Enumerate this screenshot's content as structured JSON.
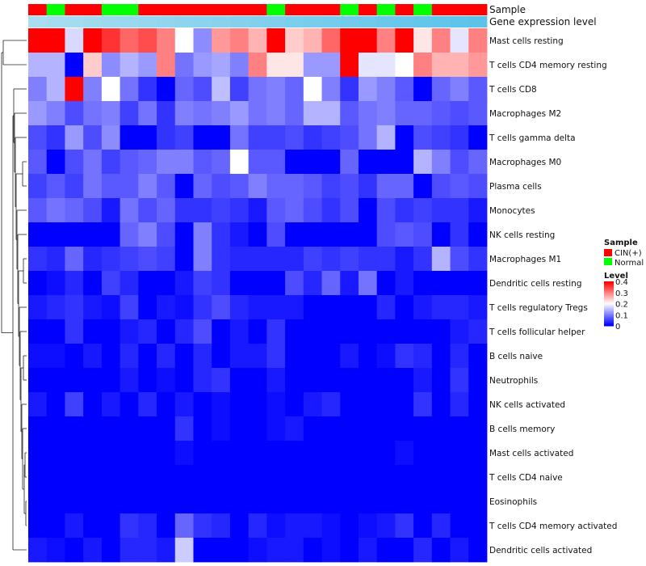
{
  "chart_data": {
    "type": "heatmap",
    "annotation_tracks": [
      "Sample",
      "Gene expression level"
    ],
    "sample_groups": [
      "CIN(+)",
      "Normal",
      "CIN(+)",
      "CIN(+)",
      "Normal",
      "Normal",
      "CIN(+)",
      "CIN(+)",
      "CIN(+)",
      "CIN(+)",
      "CIN(+)",
      "CIN(+)",
      "CIN(+)",
      "Normal",
      "CIN(+)",
      "CIN(+)",
      "CIN(+)",
      "Normal",
      "CIN(+)",
      "Normal",
      "CIN(+)",
      "Normal",
      "CIN(+)",
      "CIN(+)",
      "CIN(+)"
    ],
    "rows": [
      "Mast cells resting",
      "T cells CD4 memory resting",
      "T cells CD8",
      "Macrophages M2",
      "T cells gamma delta",
      "Macrophages M0",
      "Plasma cells",
      "Monocytes",
      "NK cells resting",
      "Macrophages M1",
      "Dendritic cells resting",
      "T cells regulatory  Tregs",
      "T cells follicular helper",
      "B cells naive",
      "Neutrophils",
      "NK cells activated",
      "B cells memory",
      "Mast cells activated",
      "T cells CD4 naive",
      "Eosinophils",
      "T cells CD4 memory activated",
      "Dendritic cells activated"
    ],
    "values": [
      [
        0.4,
        0.4,
        0.17,
        0.4,
        0.36,
        0.32,
        0.34,
        0.3,
        0.2,
        0.11,
        0.28,
        0.3,
        0.26,
        0.4,
        0.24,
        0.26,
        0.32,
        0.4,
        0.4,
        0.3,
        0.4,
        0.22,
        0.3,
        0.18,
        0.3
      ],
      [
        0.14,
        0.14,
        0.0,
        0.24,
        0.11,
        0.14,
        0.12,
        0.3,
        0.09,
        0.12,
        0.13,
        0.1,
        0.3,
        0.22,
        0.22,
        0.12,
        0.12,
        0.4,
        0.18,
        0.18,
        0.2,
        0.3,
        0.26,
        0.26,
        0.28
      ],
      [
        0.1,
        0.14,
        0.4,
        0.1,
        0.2,
        0.09,
        0.04,
        0.0,
        0.08,
        0.06,
        0.15,
        0.05,
        0.09,
        0.1,
        0.08,
        0.2,
        0.1,
        0.04,
        0.12,
        0.1,
        0.07,
        0.0,
        0.08,
        0.1,
        0.07
      ],
      [
        0.12,
        0.1,
        0.06,
        0.09,
        0.1,
        0.05,
        0.09,
        0.04,
        0.1,
        0.09,
        0.1,
        0.12,
        0.09,
        0.1,
        0.08,
        0.14,
        0.14,
        0.07,
        0.09,
        0.1,
        0.08,
        0.08,
        0.07,
        0.06,
        0.07
      ],
      [
        0.06,
        0.04,
        0.12,
        0.06,
        0.11,
        0.0,
        0.0,
        0.04,
        0.05,
        0.0,
        0.0,
        0.09,
        0.05,
        0.05,
        0.06,
        0.04,
        0.05,
        0.06,
        0.09,
        0.14,
        0.0,
        0.06,
        0.05,
        0.04,
        0.0
      ],
      [
        0.07,
        0.0,
        0.06,
        0.09,
        0.05,
        0.07,
        0.08,
        0.1,
        0.1,
        0.07,
        0.08,
        0.2,
        0.07,
        0.07,
        0.0,
        0.0,
        0.0,
        0.08,
        0.0,
        0.0,
        0.0,
        0.14,
        0.1,
        0.06,
        0.08
      ],
      [
        0.05,
        0.07,
        0.05,
        0.09,
        0.07,
        0.07,
        0.1,
        0.07,
        0.0,
        0.08,
        0.06,
        0.07,
        0.1,
        0.08,
        0.08,
        0.07,
        0.05,
        0.06,
        0.04,
        0.08,
        0.08,
        0.0,
        0.06,
        0.07,
        0.06
      ],
      [
        0.07,
        0.09,
        0.08,
        0.06,
        0.02,
        0.09,
        0.06,
        0.08,
        0.04,
        0.04,
        0.05,
        0.04,
        0.02,
        0.07,
        0.08,
        0.06,
        0.04,
        0.06,
        0.0,
        0.06,
        0.04,
        0.05,
        0.04,
        0.04,
        0.02
      ],
      [
        0.0,
        0.0,
        0.0,
        0.0,
        0.0,
        0.08,
        0.1,
        0.06,
        0.0,
        0.1,
        0.04,
        0.02,
        0.0,
        0.06,
        0.0,
        0.0,
        0.0,
        0.0,
        0.0,
        0.06,
        0.07,
        0.06,
        0.0,
        0.04,
        0.0
      ],
      [
        0.04,
        0.03,
        0.08,
        0.03,
        0.04,
        0.05,
        0.06,
        0.05,
        0.0,
        0.1,
        0.04,
        0.03,
        0.03,
        0.03,
        0.03,
        0.05,
        0.04,
        0.05,
        0.04,
        0.04,
        0.02,
        0.04,
        0.14,
        0.06,
        0.04
      ],
      [
        0.0,
        0.01,
        0.03,
        0.0,
        0.05,
        0.03,
        0.0,
        0.0,
        0.02,
        0.05,
        0.04,
        0.0,
        0.0,
        0.0,
        0.06,
        0.03,
        0.08,
        0.02,
        0.09,
        0.0,
        0.02,
        0.0,
        0.0,
        0.0,
        0.0
      ],
      [
        0.02,
        0.03,
        0.04,
        0.02,
        0.01,
        0.05,
        0.0,
        0.02,
        0.01,
        0.04,
        0.06,
        0.03,
        0.02,
        0.02,
        0.02,
        0.0,
        0.0,
        0.0,
        0.0,
        0.03,
        0.0,
        0.02,
        0.03,
        0.03,
        0.02
      ],
      [
        0.0,
        0.0,
        0.04,
        0.0,
        0.0,
        0.02,
        0.03,
        0.0,
        0.03,
        0.06,
        0.0,
        0.02,
        0.0,
        0.04,
        0.0,
        0.0,
        0.0,
        0.0,
        0.0,
        0.0,
        0.0,
        0.0,
        0.0,
        0.02,
        0.03
      ],
      [
        0.01,
        0.01,
        0.0,
        0.02,
        0.0,
        0.03,
        0.0,
        0.03,
        0.0,
        0.03,
        0.0,
        0.02,
        0.02,
        0.04,
        0.0,
        0.0,
        0.0,
        0.02,
        0.0,
        0.01,
        0.04,
        0.03,
        0.0,
        0.03,
        0.0
      ],
      [
        0.0,
        0.0,
        0.0,
        0.0,
        0.0,
        0.02,
        0.0,
        0.01,
        0.0,
        0.03,
        0.04,
        0.0,
        0.0,
        0.02,
        0.0,
        0.0,
        0.0,
        0.0,
        0.0,
        0.0,
        0.0,
        0.02,
        0.0,
        0.04,
        0.0
      ],
      [
        0.02,
        0.0,
        0.05,
        0.0,
        0.02,
        0.0,
        0.03,
        0.0,
        0.02,
        0.0,
        0.01,
        0.0,
        0.0,
        0.01,
        0.0,
        0.02,
        0.03,
        0.0,
        0.0,
        0.0,
        0.0,
        0.04,
        0.0,
        0.03,
        0.0
      ],
      [
        0.0,
        0.0,
        0.0,
        0.0,
        0.0,
        0.0,
        0.0,
        0.0,
        0.04,
        0.0,
        0.01,
        0.0,
        0.0,
        0.01,
        0.02,
        0.0,
        0.0,
        0.0,
        0.0,
        0.0,
        0.0,
        0.0,
        0.0,
        0.0,
        0.0
      ],
      [
        0.0,
        0.0,
        0.0,
        0.0,
        0.0,
        0.0,
        0.0,
        0.0,
        0.01,
        0.0,
        0.0,
        0.0,
        0.0,
        0.0,
        0.0,
        0.0,
        0.0,
        0.0,
        0.0,
        0.0,
        0.01,
        0.0,
        0.0,
        0.0,
        0.0
      ],
      [
        0.0,
        0.0,
        0.0,
        0.0,
        0.0,
        0.0,
        0.0,
        0.0,
        0.0,
        0.0,
        0.0,
        0.0,
        0.0,
        0.0,
        0.0,
        0.0,
        0.0,
        0.0,
        0.0,
        0.0,
        0.0,
        0.0,
        0.0,
        0.0,
        0.0
      ],
      [
        0.0,
        0.0,
        0.0,
        0.0,
        0.0,
        0.0,
        0.0,
        0.0,
        0.0,
        0.0,
        0.0,
        0.0,
        0.0,
        0.0,
        0.0,
        0.0,
        0.0,
        0.0,
        0.0,
        0.0,
        0.0,
        0.0,
        0.0,
        0.0,
        0.0
      ],
      [
        0.0,
        0.0,
        0.02,
        0.0,
        0.0,
        0.04,
        0.03,
        0.0,
        0.08,
        0.04,
        0.03,
        0.0,
        0.03,
        0.01,
        0.02,
        0.02,
        0.01,
        0.0,
        0.01,
        0.02,
        0.04,
        0.0,
        0.03,
        0.0,
        0.0
      ],
      [
        0.02,
        0.01,
        0.0,
        0.02,
        0.0,
        0.03,
        0.03,
        0.02,
        0.16,
        0.0,
        0.0,
        0.0,
        0.01,
        0.02,
        0.02,
        0.0,
        0.01,
        0.0,
        0.02,
        0.0,
        0.0,
        0.03,
        0.0,
        0.02,
        0.0
      ]
    ],
    "legend": {
      "sample_title": "Sample",
      "sample_items": [
        {
          "label": "CIN(+)",
          "color": "#ff0000"
        },
        {
          "label": "Normal",
          "color": "#00ff00"
        }
      ],
      "level_title": "Level",
      "level_ticks": [
        "0.4",
        "0.3",
        "0.2",
        "0.1",
        "0"
      ],
      "level_tick_values": [
        0.4,
        0.3,
        0.2,
        0.1,
        0
      ]
    },
    "color_scale": {
      "low": "#0000ff",
      "mid": "#ffffff",
      "high": "#ff0000",
      "min": 0,
      "mid_value": 0.2,
      "max": 0.4
    },
    "expression_track": {
      "light": "#a9ddf0",
      "dark": "#5bc3ea"
    }
  }
}
